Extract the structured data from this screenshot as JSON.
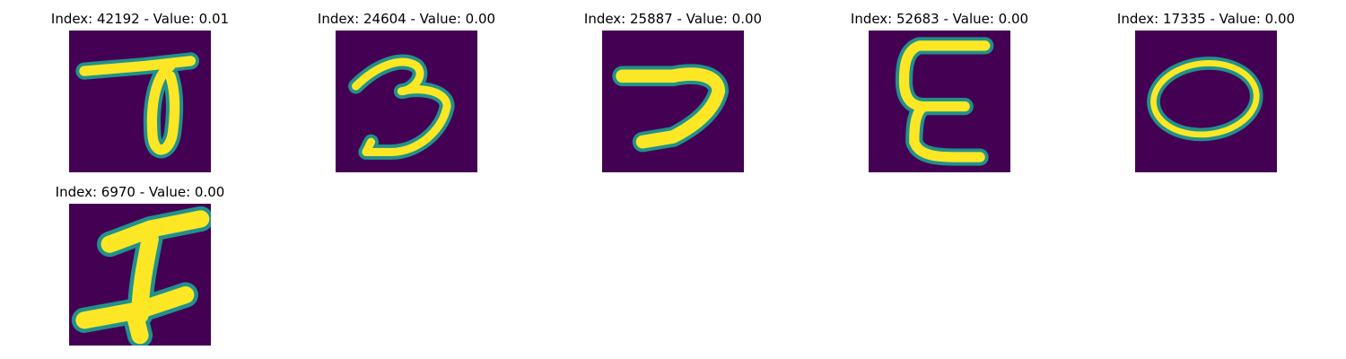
{
  "figure": {
    "colormap": "viridis",
    "colors": {
      "background": "#440154",
      "stroke_edge": "#21918c",
      "stroke_core": "#fde725"
    },
    "panels": [
      {
        "title": "Index: 42192 - Value: 0.01"
      },
      {
        "title": "Index: 24604 - Value: 0.00"
      },
      {
        "title": "Index: 25887 - Value: 0.00"
      },
      {
        "title": "Index: 52683 - Value: 0.00"
      },
      {
        "title": "Index: 17335 - Value: 0.00"
      },
      {
        "title": "Index: 6970 - Value: 0.00"
      }
    ]
  }
}
